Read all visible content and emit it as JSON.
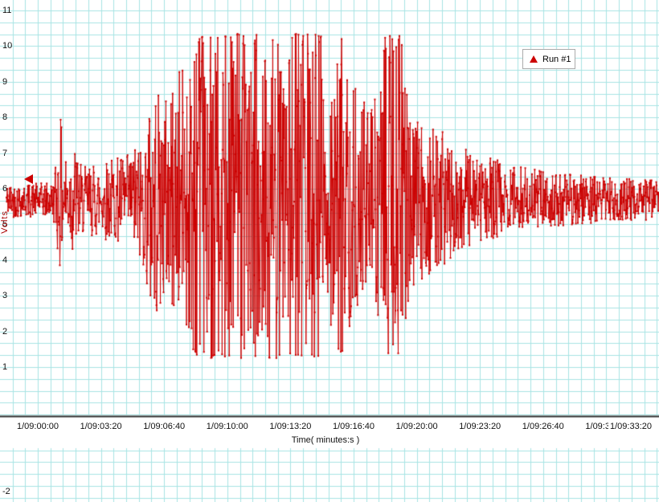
{
  "colors": {
    "background": "#ffffff",
    "grid": "#a8e4e4",
    "series_red": "#cc0000",
    "axis_line": "#2f2f2f",
    "text": "#111111"
  },
  "chart_data": {
    "type": "line",
    "title": "",
    "xlabel": "Time( minutes:s )",
    "ylabel": "Volts",
    "ylim": [
      -2,
      11
    ],
    "grid": true,
    "legend_position": "top-right",
    "series": [
      {
        "name": "Run #1",
        "color": "#cc0000",
        "marker": "triangle"
      }
    ],
    "y_tick_labels_upper": [
      "11",
      "10",
      "9",
      "8",
      "7",
      "6",
      "5",
      "4",
      "3",
      "2",
      "1"
    ],
    "y_tick_labels_lower": [
      "-2"
    ],
    "x_tick_labels": [
      "1/09:00:00",
      "1/09:03:20",
      "1/09:06:40",
      "1/09:10:00",
      "1/09:13:20",
      "1/09:16:40",
      "1/09:20:00",
      "1/09:23:20",
      "1/09:26:40",
      "1/09:30:00",
      "1/09:33:20"
    ],
    "signal": {
      "baseline_v": 5.7,
      "sample_count": 1650,
      "seed": 42,
      "seconds_per_x_tick": 200,
      "envelope_keyframes": [
        [
          0,
          5.2,
          6.15
        ],
        [
          50,
          5.15,
          6.2
        ],
        [
          60,
          4.3,
          7.2
        ],
        [
          72,
          3.6,
          8.0
        ],
        [
          85,
          4.5,
          7.0
        ],
        [
          115,
          4.1,
          7.35
        ],
        [
          140,
          4.7,
          6.6
        ],
        [
          200,
          4.6,
          6.8
        ],
        [
          290,
          4.4,
          7.0
        ],
        [
          340,
          3.6,
          7.6
        ],
        [
          362,
          1.9,
          9.2
        ],
        [
          385,
          2.6,
          8.6
        ],
        [
          430,
          2.4,
          9.0
        ],
        [
          465,
          2.0,
          9.6
        ],
        [
          500,
          1.35,
          10.3
        ],
        [
          530,
          1.25,
          10.35
        ],
        [
          650,
          1.25,
          10.35
        ],
        [
          670,
          2.2,
          9.4
        ],
        [
          690,
          1.25,
          10.35
        ],
        [
          770,
          1.25,
          10.35
        ],
        [
          790,
          2.4,
          9.2
        ],
        [
          800,
          1.25,
          10.35
        ],
        [
          895,
          1.25,
          10.35
        ],
        [
          915,
          2.0,
          9.8
        ],
        [
          960,
          1.3,
          10.3
        ],
        [
          1000,
          2.3,
          9.0
        ],
        [
          1030,
          2.8,
          8.4
        ],
        [
          1070,
          2.6,
          8.7
        ],
        [
          1095,
          1.35,
          10.3
        ],
        [
          1150,
          1.3,
          10.3
        ],
        [
          1175,
          3.0,
          8.2
        ],
        [
          1225,
          3.4,
          7.8
        ],
        [
          1290,
          3.8,
          7.6
        ],
        [
          1340,
          4.2,
          7.2
        ],
        [
          1420,
          4.5,
          6.9
        ],
        [
          1510,
          4.8,
          6.7
        ],
        [
          1600,
          4.9,
          6.5
        ],
        [
          1700,
          5.0,
          6.4
        ],
        [
          1850,
          5.1,
          6.3
        ],
        [
          2060,
          5.15,
          6.25
        ]
      ]
    }
  }
}
